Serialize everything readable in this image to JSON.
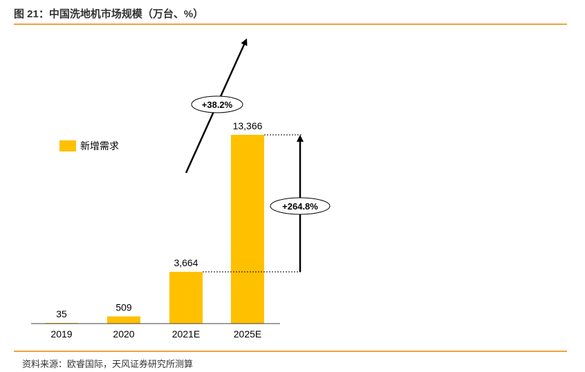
{
  "page": {
    "title": "图 21：中国洗地机市场规模（万台、%）",
    "source": "资料来源：欧睿国际，天风证券研究所测算"
  },
  "colors": {
    "accent_rule": "#f0a23c",
    "bar": "#ffc000",
    "axis": "#404040"
  },
  "chart_data": {
    "type": "bar",
    "title": "中国洗地机市场规模（万台、%）",
    "categories": [
      "2019",
      "2020",
      "2021E",
      "2025E"
    ],
    "series": [
      {
        "name": "新增需求",
        "values": [
          35,
          509,
          3664,
          13366
        ]
      }
    ],
    "data_labels": [
      "35",
      "509",
      "3,664",
      "13,366"
    ],
    "annotations": {
      "cagr": "+38.2%",
      "growth": "+264.8%"
    },
    "ylim": [
      0,
      13366
    ],
    "legend_position": "left",
    "grid": false
  }
}
